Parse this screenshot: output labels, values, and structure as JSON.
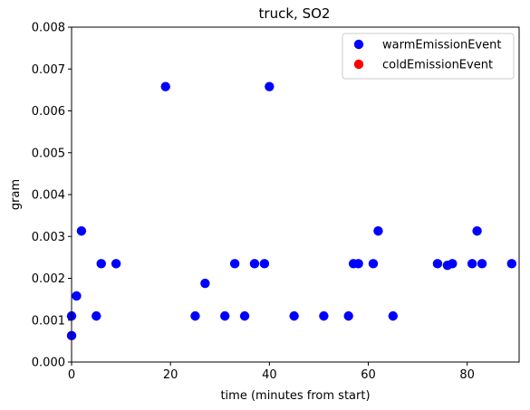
{
  "chart_data": {
    "type": "scatter",
    "title": "truck, SO2",
    "xlabel": "time (minutes from start)",
    "ylabel": "gram",
    "xlim": [
      0,
      90.5
    ],
    "ylim": [
      0,
      0.008
    ],
    "x_ticks": [
      0,
      20,
      40,
      60,
      80
    ],
    "y_ticks": [
      0.0,
      0.001,
      0.002,
      0.003,
      0.004,
      0.005,
      0.006,
      0.007,
      0.008
    ],
    "y_tick_labels": [
      "0.000",
      "0.001",
      "0.002",
      "0.003",
      "0.004",
      "0.005",
      "0.006",
      "0.007",
      "0.008"
    ],
    "grid": false,
    "legend_position": "top-right",
    "series": [
      {
        "name": "warmEmissionEvent",
        "color": "#0000ff",
        "points": [
          {
            "x": 0,
            "y": 0.00063
          },
          {
            "x": 0,
            "y": 0.0011
          },
          {
            "x": 1,
            "y": 0.00158
          },
          {
            "x": 2,
            "y": 0.00313
          },
          {
            "x": 5,
            "y": 0.0011
          },
          {
            "x": 6,
            "y": 0.00235
          },
          {
            "x": 9,
            "y": 0.00235
          },
          {
            "x": 19,
            "y": 0.00658
          },
          {
            "x": 25,
            "y": 0.0011
          },
          {
            "x": 27,
            "y": 0.00188
          },
          {
            "x": 31,
            "y": 0.0011
          },
          {
            "x": 33,
            "y": 0.00235
          },
          {
            "x": 35,
            "y": 0.0011
          },
          {
            "x": 37,
            "y": 0.00235
          },
          {
            "x": 39,
            "y": 0.00235
          },
          {
            "x": 40,
            "y": 0.00658
          },
          {
            "x": 45,
            "y": 0.0011
          },
          {
            "x": 51,
            "y": 0.0011
          },
          {
            "x": 56,
            "y": 0.0011
          },
          {
            "x": 57,
            "y": 0.00235
          },
          {
            "x": 58,
            "y": 0.00235
          },
          {
            "x": 61,
            "y": 0.00235
          },
          {
            "x": 62,
            "y": 0.00313
          },
          {
            "x": 65,
            "y": 0.0011
          },
          {
            "x": 74,
            "y": 0.00235
          },
          {
            "x": 76,
            "y": 0.00231
          },
          {
            "x": 77,
            "y": 0.00235
          },
          {
            "x": 81,
            "y": 0.00235
          },
          {
            "x": 82,
            "y": 0.00313
          },
          {
            "x": 83,
            "y": 0.00235
          },
          {
            "x": 89,
            "y": 0.00235
          }
        ]
      },
      {
        "name": "coldEmissionEvent",
        "color": "#ff0000",
        "points": []
      }
    ]
  }
}
